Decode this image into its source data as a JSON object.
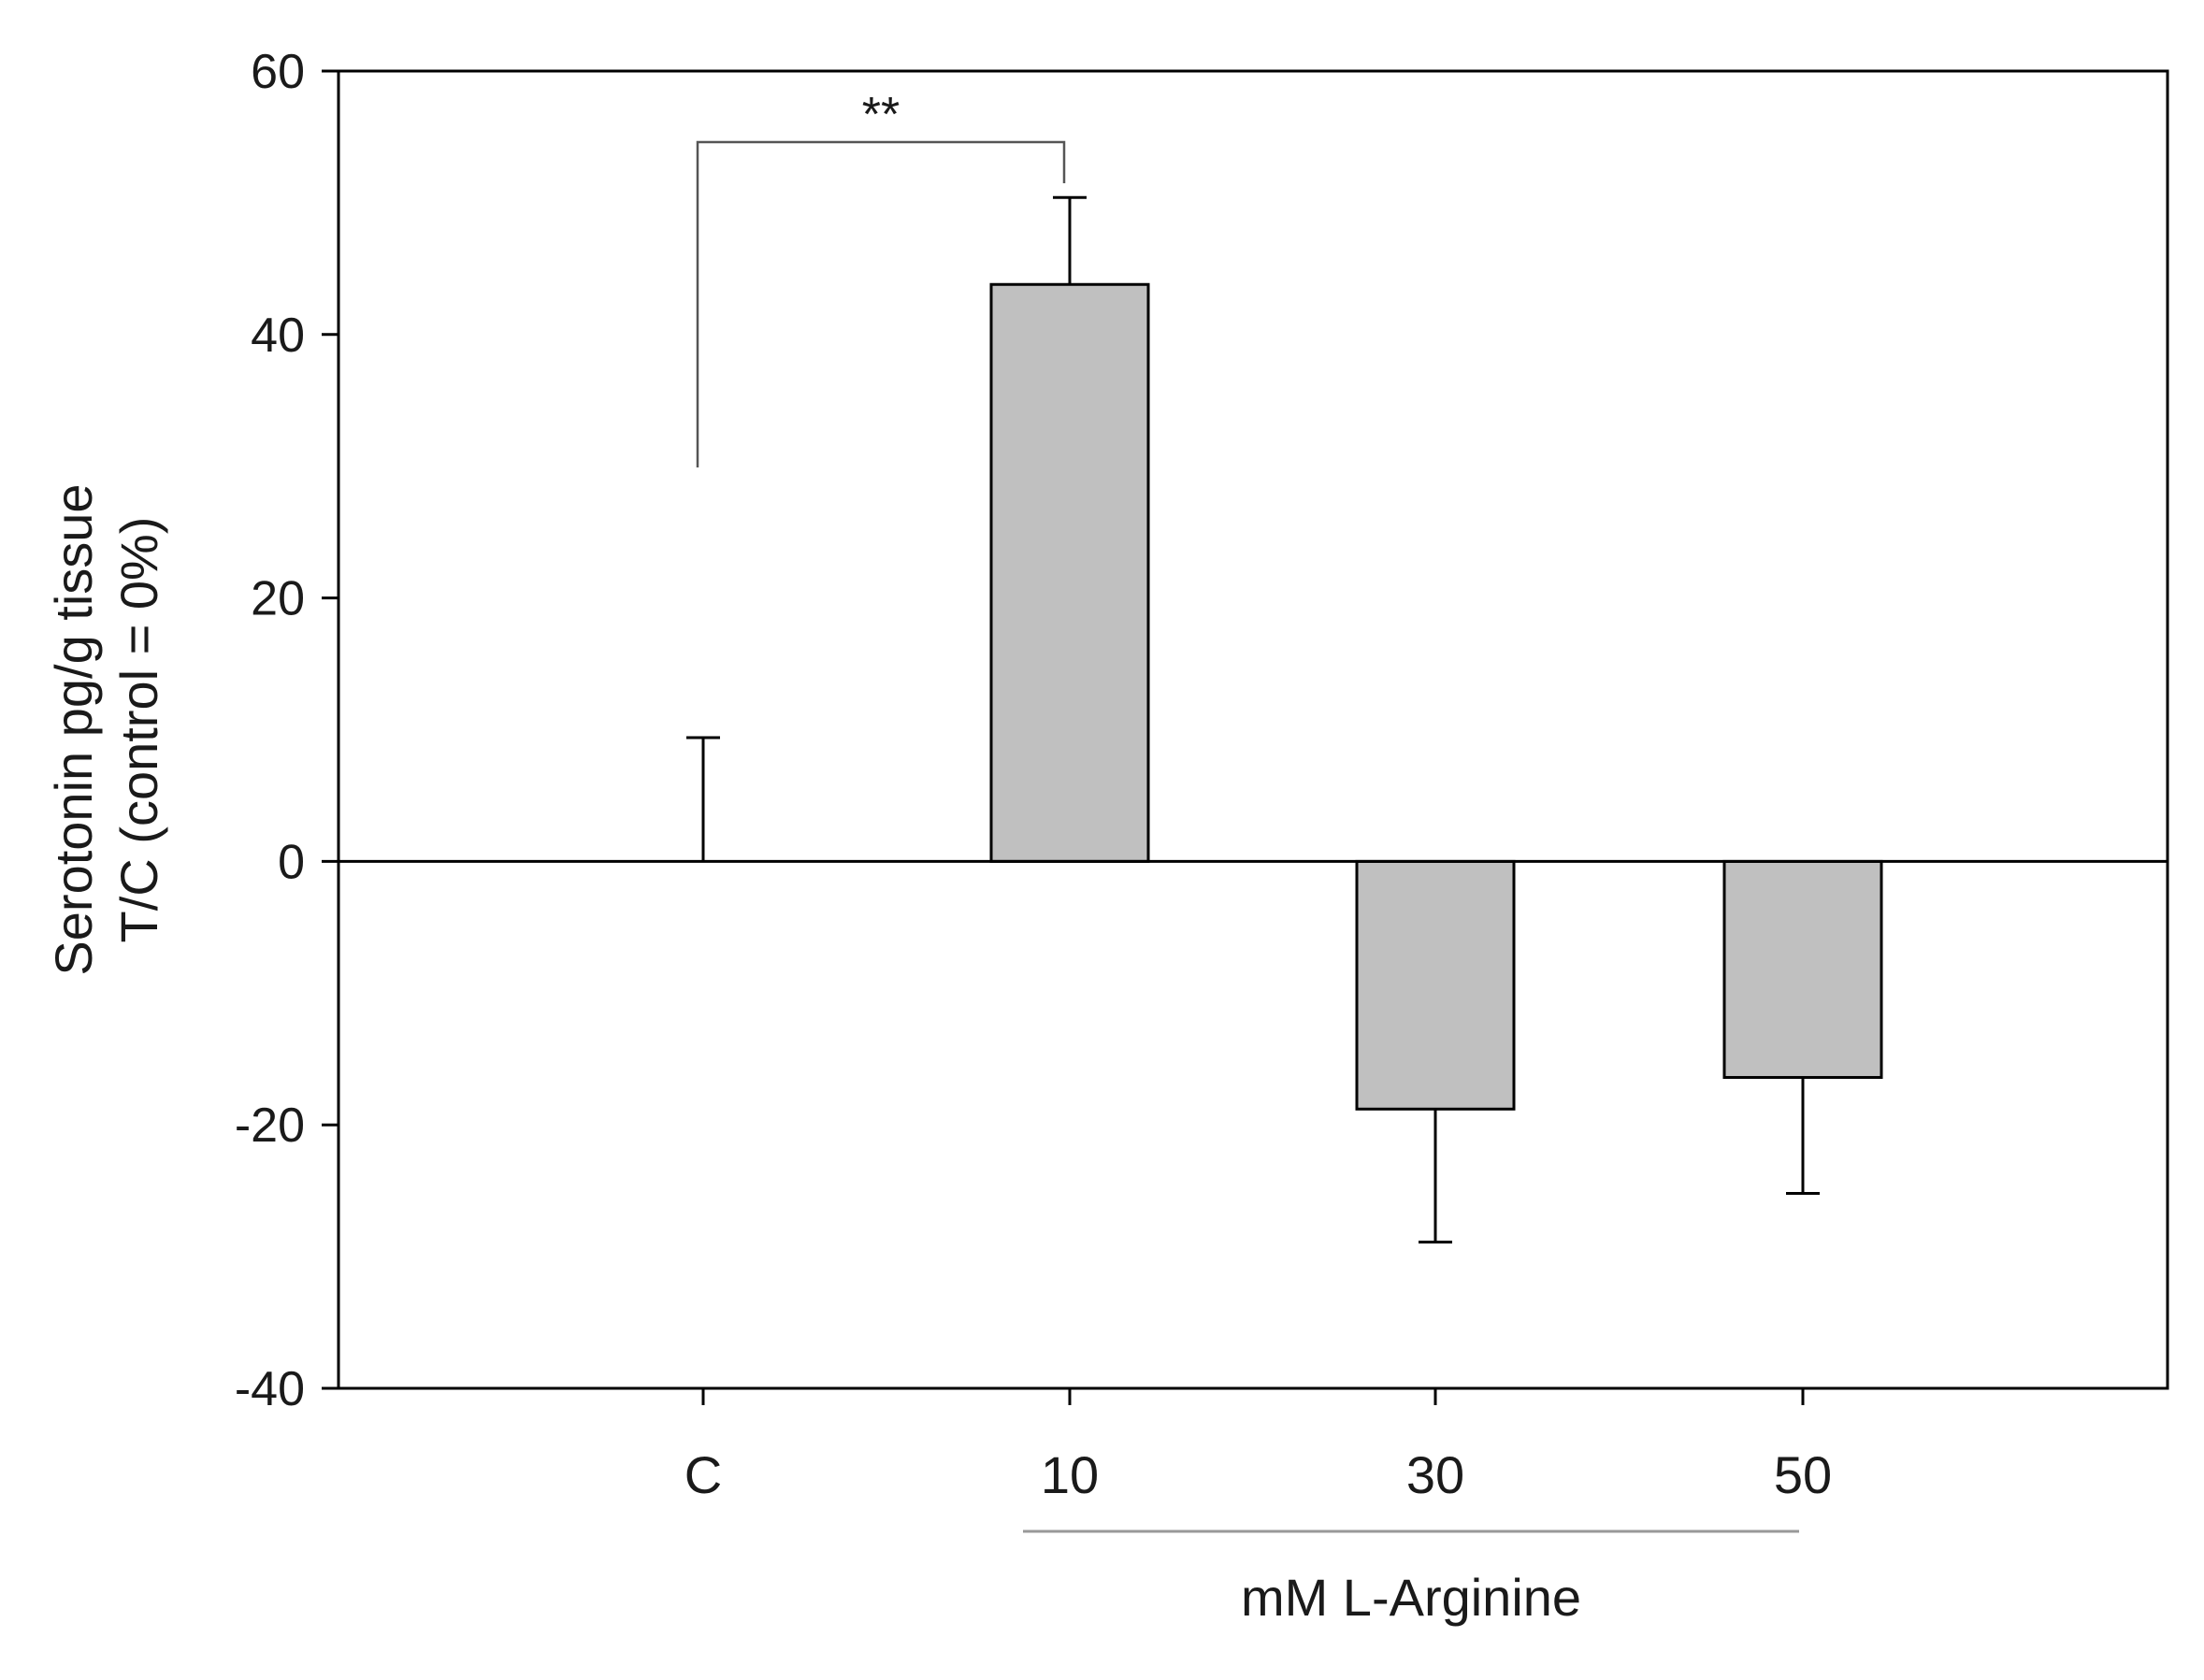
{
  "chart_data": {
    "type": "bar",
    "categories": [
      "C",
      "10",
      "30",
      "50"
    ],
    "values": [
      0,
      43.8,
      -18.8,
      -16.4
    ],
    "error_bars": [
      9.4,
      6.6,
      10.1,
      8.8
    ],
    "ylabel_lines": [
      "Serotonin pg/g tissue",
      "T/C (control = 0%)"
    ],
    "group_label": "mM L-Arginine",
    "grouped_categories": [
      "10",
      "30",
      "50"
    ],
    "ylim": [
      -40,
      60
    ],
    "yticks": [
      -40,
      -20,
      0,
      20,
      40,
      60
    ],
    "significance": {
      "from": "C",
      "to": "10",
      "label": "**"
    },
    "grid": false,
    "bar_color": "#c0c0c0",
    "edge_color": "#000000",
    "group_line_color": "#999999"
  }
}
